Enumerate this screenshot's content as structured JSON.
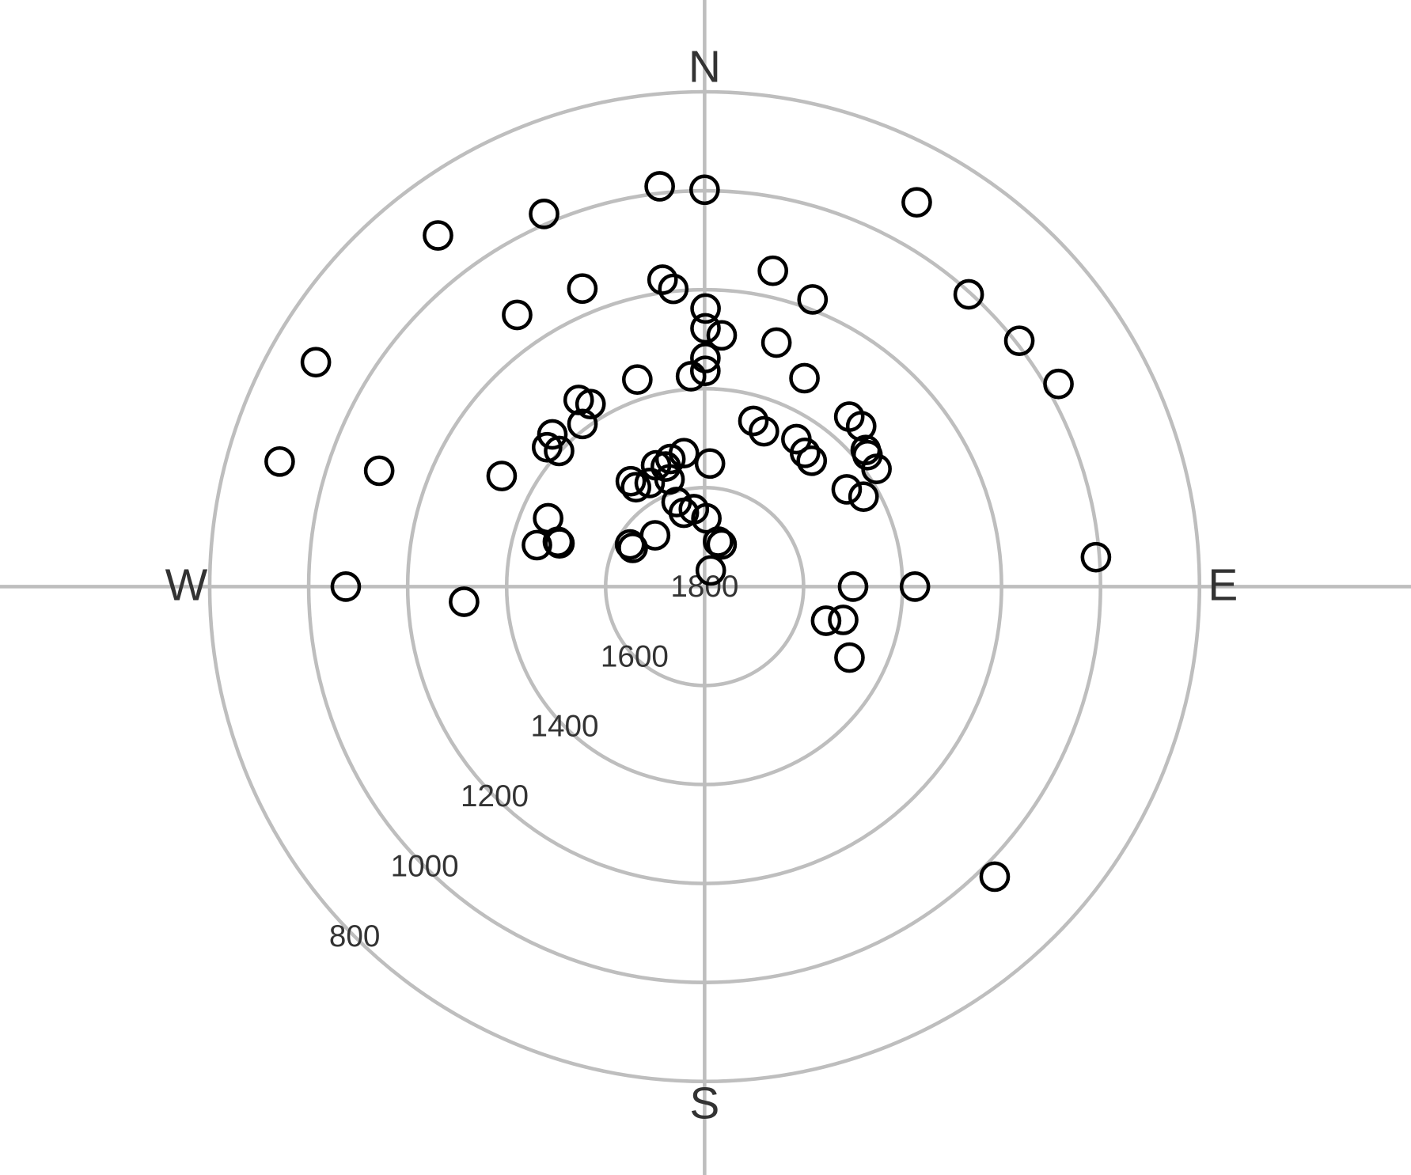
{
  "chart_data": {
    "type": "polar-scatter",
    "x": [
      353.6,
      0,
      28.9,
      336.7,
      322.8,
      12.2,
      352.2,
      354,
      337.7,
      20.6,
      42.1,
      325.4,
      0.2,
      0.2,
      3.9,
      16.4,
      52,
      300,
      0.2,
      0.2,
      356.3,
      342,
      25.6,
      60.2,
      326,
      328,
      40.4,
      16.4,
      44.3,
      323.1,
      20.9,
      315,
      31.9,
      311.5,
      313,
      49.7,
      51.1,
      36.9,
      40.4,
      351.2,
      345,
      286.4,
      289.6,
      338.2,
      342.1,
      2.5,
      55.6,
      298.6,
      325,
      341.9,
      325.4,
      332.1,
      55.6,
      60.5,
      341.7,
      352.1,
      344.3,
      1.5,
      293.6,
      316,
      283.9,
      287,
      286.6,
      299.5,
      298.3,
      16.7,
      22,
      85.7,
      21,
      270,
      90,
      90,
      266.4,
      105.7,
      103.5,
      116.1,
      135
    ],
    "values": [
      986,
      998,
      913,
      980,
      909,
      1147,
      1174,
      1195,
      1149,
      1180,
      1004,
      1133,
      1238,
      1278,
      1291,
      1286,
      993,
      893,
      1338,
      1364,
      1374,
      1360,
      1333,
      976,
      1345,
      1365,
      1349,
      1451,
      1347,
      1389,
      1464,
      1365,
      1449,
      1375,
      1398,
      1373,
      1377,
      1462,
      1466,
      1527,
      1533,
      905,
      1102,
      1536,
      1545,
      1551,
      1379,
      1333,
      1540,
      1572,
      1556,
      1563,
      1452,
      1431,
      1620,
      1642,
      1645,
      1662,
      1455,
      1656,
      1451,
      1490,
      1494,
      1627,
      1635,
      1705,
      1708,
      1007,
      1765,
      1075,
      1500,
      1375,
      1313,
      1545,
      1512,
      1474,
      971
    ],
    "color": "#000000",
    "xticks": [
      {
        "value": 0,
        "label": "N"
      },
      {
        "value": 90,
        "label": "E"
      },
      {
        "value": 180,
        "label": "S"
      },
      {
        "value": 270,
        "label": "W"
      }
    ],
    "ylim": [
      1800,
      800
    ],
    "yticks": [
      1800,
      1600,
      1400,
      1200,
      1000,
      800
    ],
    "grid": true
  }
}
